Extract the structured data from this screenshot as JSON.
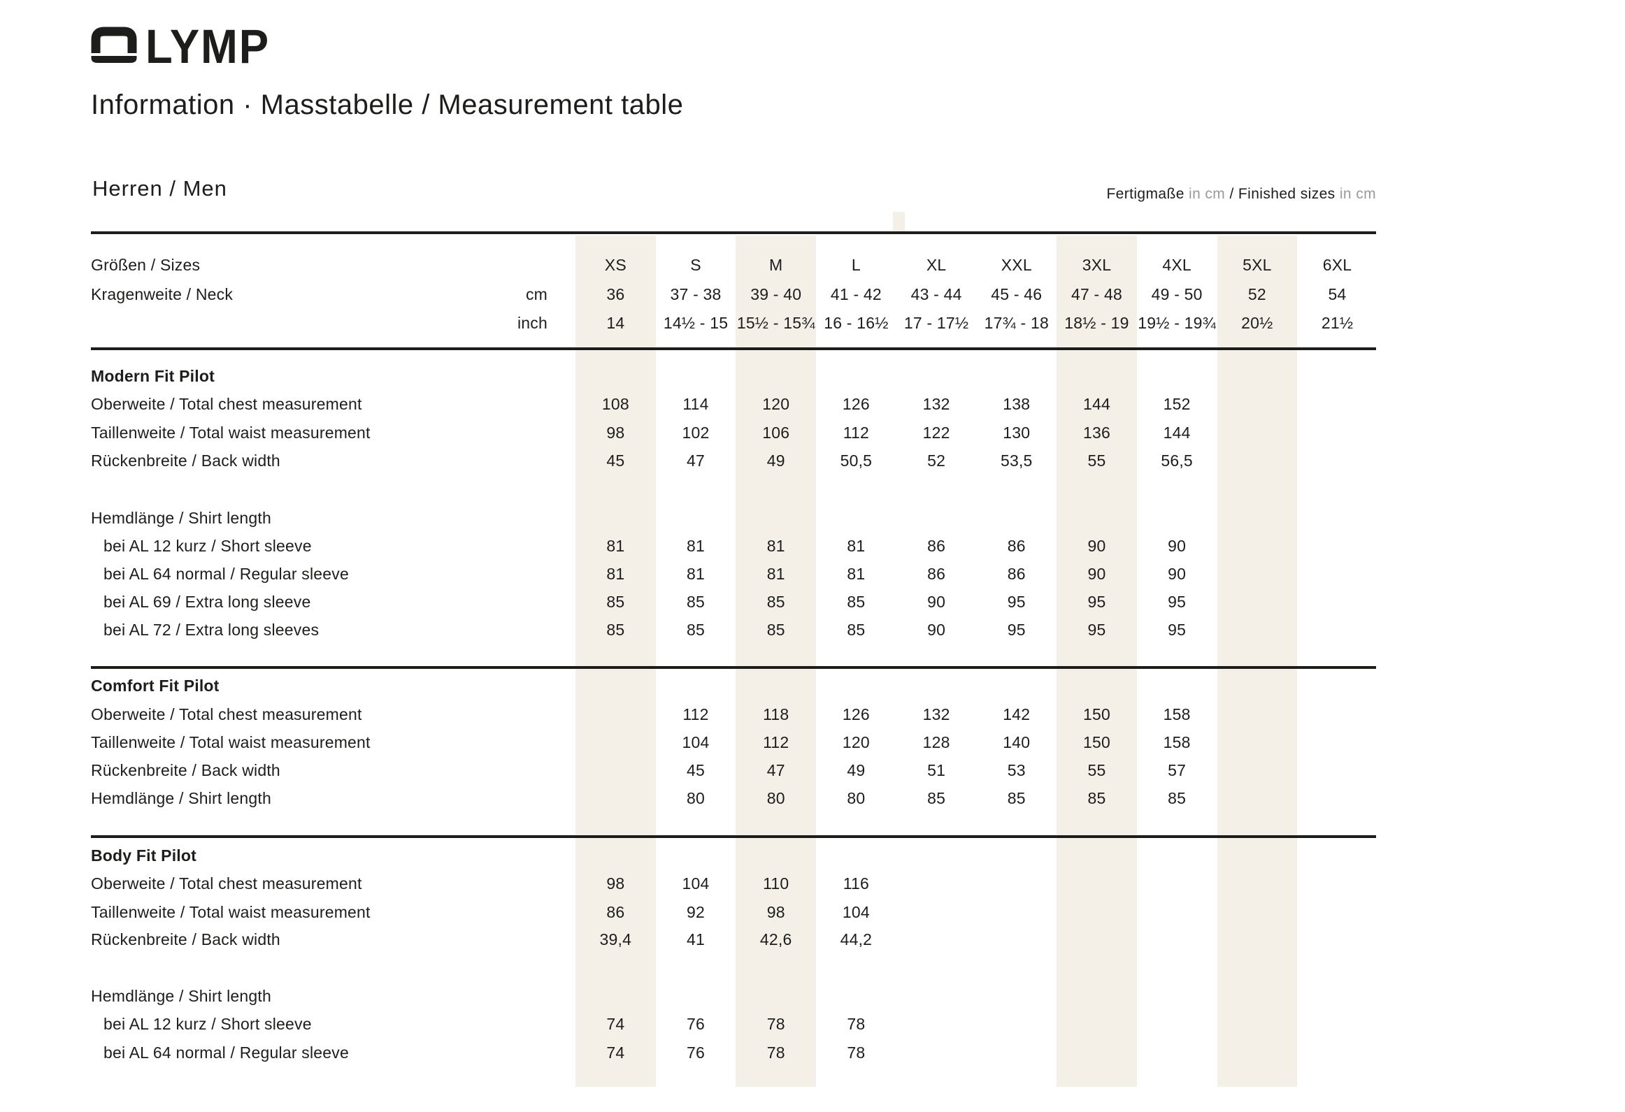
{
  "brand": {
    "name": "OLYMP",
    "logo_letters": "LYMP"
  },
  "header": {
    "title": "Information · Masstabelle / Measurement table"
  },
  "section": {
    "title": "Herren / Men",
    "unit_note_parts": [
      {
        "text": "Fertigmaße ",
        "muted": false
      },
      {
        "text": "in cm",
        "muted": true
      },
      {
        "text": " / Finished sizes ",
        "muted": false
      },
      {
        "text": "in cm",
        "muted": true
      }
    ]
  },
  "table": {
    "size_header": {
      "label": "Größen / Sizes",
      "sizes": [
        "XS",
        "S",
        "M",
        "L",
        "XL",
        "XXL",
        "3XL",
        "4XL",
        "5XL",
        "6XL"
      ]
    },
    "neck": {
      "label": "Kragenweite / Neck",
      "cm_unit": "cm",
      "inch_unit": "inch",
      "cm": [
        "36",
        "37 - 38",
        "39 - 40",
        "41 - 42",
        "43 - 44",
        "45 - 46",
        "47 - 48",
        "49 - 50",
        "52",
        "54"
      ],
      "inch": [
        "14",
        "14½ - 15",
        "15½ - 15¾",
        "16 - 16½",
        "17 - 17½",
        "17¾ - 18",
        "18½ - 19",
        "19½ - 19¾",
        "20½",
        "21½"
      ]
    },
    "highlighted_size_columns": [
      "XS",
      "M",
      "3XL",
      "5XL"
    ],
    "sections": [
      {
        "name": "Modern Fit Pilot",
        "rows": [
          {
            "label": "Oberweite / Total chest measurement",
            "values": [
              "108",
              "114",
              "120",
              "126",
              "132",
              "138",
              "144",
              "152",
              "",
              ""
            ]
          },
          {
            "label": "Taillenweite / Total waist measurement",
            "values": [
              "98",
              "102",
              "106",
              "112",
              "122",
              "130",
              "136",
              "144",
              "",
              ""
            ]
          },
          {
            "label": "Rückenbreite / Back width",
            "values": [
              "45",
              "47",
              "49",
              "50,5",
              "52",
              "53,5",
              "55",
              "56,5",
              "",
              ""
            ]
          },
          {
            "label": "Hemdlänge / Shirt length"
          },
          {
            "label": "bei AL 12 kurz / Short sleeve",
            "indent": true,
            "values": [
              "81",
              "81",
              "81",
              "81",
              "86",
              "86",
              "90",
              "90",
              "",
              ""
            ]
          },
          {
            "label": "bei AL 64 normal / Regular sleeve",
            "indent": true,
            "values": [
              "81",
              "81",
              "81",
              "81",
              "86",
              "86",
              "90",
              "90",
              "",
              ""
            ]
          },
          {
            "label": "bei AL 69 / Extra long sleeve",
            "indent": true,
            "values": [
              "85",
              "85",
              "85",
              "85",
              "90",
              "95",
              "95",
              "95",
              "",
              ""
            ]
          },
          {
            "label": "bei AL 72 / Extra long sleeves",
            "indent": true,
            "values": [
              "85",
              "85",
              "85",
              "85",
              "90",
              "95",
              "95",
              "95",
              "",
              ""
            ]
          }
        ]
      },
      {
        "name": "Comfort Fit Pilot",
        "rows": [
          {
            "label": "Oberweite / Total chest measurement",
            "values": [
              "",
              "112",
              "118",
              "126",
              "132",
              "142",
              "150",
              "158",
              "",
              ""
            ]
          },
          {
            "label": "Taillenweite / Total waist measurement",
            "values": [
              "",
              "104",
              "112",
              "120",
              "128",
              "140",
              "150",
              "158",
              "",
              ""
            ]
          },
          {
            "label": "Rückenbreite / Back width",
            "values": [
              "",
              "45",
              "47",
              "49",
              "51",
              "53",
              "55",
              "57",
              "",
              ""
            ]
          },
          {
            "label": "Hemdlänge / Shirt length",
            "values": [
              "",
              "80",
              "80",
              "80",
              "85",
              "85",
              "85",
              "85",
              "",
              ""
            ]
          }
        ]
      },
      {
        "name": "Body Fit Pilot",
        "rows": [
          {
            "label": "Oberweite / Total chest measurement",
            "values": [
              "98",
              "104",
              "110",
              "116",
              "",
              "",
              "",
              "",
              "",
              ""
            ]
          },
          {
            "label": "Taillenweite / Total waist measurement",
            "values": [
              "86",
              "92",
              "98",
              "104",
              "",
              "",
              "",
              "",
              "",
              ""
            ]
          },
          {
            "label": "Rückenbreite / Back width",
            "values": [
              "39,4",
              "41",
              "42,6",
              "44,2",
              "",
              "",
              "",
              "",
              "",
              ""
            ]
          },
          {
            "label": "Hemdlänge / Shirt length"
          },
          {
            "label": "bei AL 12 kurz / Short sleeve",
            "indent": true,
            "values": [
              "74",
              "76",
              "78",
              "78",
              "",
              "",
              "",
              "",
              "",
              ""
            ]
          },
          {
            "label": "bei AL 64 normal / Regular sleeve",
            "indent": true,
            "values": [
              "74",
              "76",
              "78",
              "78",
              "",
              "",
              "",
              "",
              "",
              ""
            ]
          }
        ]
      }
    ]
  },
  "colors": {
    "text": "#1d1d1b",
    "muted": "#9a9a9a",
    "band": "#f4f0e8",
    "background": "#ffffff"
  }
}
